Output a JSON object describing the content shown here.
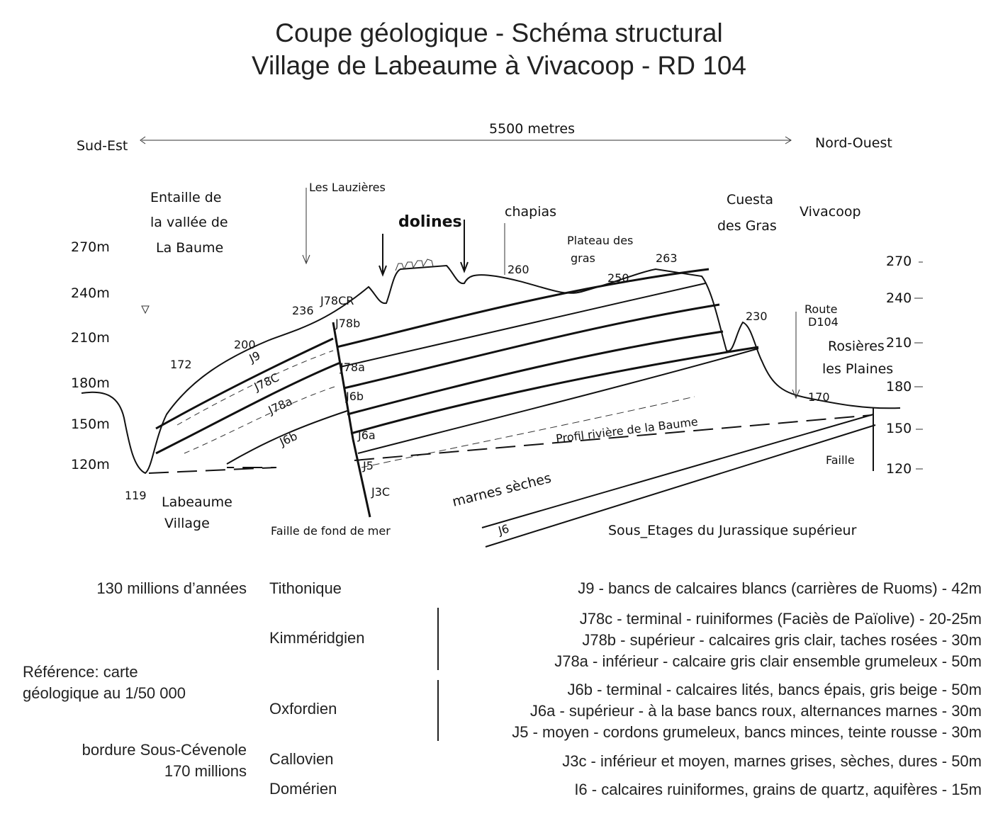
{
  "title": {
    "line1": "Coupe géologique - Schéma structural",
    "line2": "Village de Labeaume à Vivacoop - RD 104"
  },
  "section": {
    "distance": "5500 metres",
    "left_direction": "Sud-Est",
    "right_direction": "Nord-Ouest",
    "left_scale": [
      "270m",
      "240m",
      "210m",
      "180m",
      "150m",
      "120m"
    ],
    "right_scale": [
      "270",
      "240",
      "210",
      "180",
      "150",
      "120"
    ],
    "places": {
      "entaille": [
        "Entaille de",
        "la vallée de",
        "La Baume"
      ],
      "lauzieres": "Les Lauzières",
      "dolines": "dolines",
      "chapias": "chapias",
      "plateau": [
        "Plateau des",
        "gras"
      ],
      "cuesta": [
        "Cuesta",
        "des Gras"
      ],
      "vivacoop": "Vivacoop",
      "route": [
        "Route",
        "D104"
      ],
      "rosieres": [
        "Rosières",
        "les Plaines"
      ],
      "labeaume": [
        "Labeaume",
        "Village"
      ],
      "faille_fond": "Faille de fond de mer",
      "marnes": "marnes sèches",
      "profil": "Profil rivière de la Baume",
      "faille": "Faille",
      "sous_etages": "Sous_Etages du Jurassique supérieur"
    },
    "altitudes": [
      "119",
      "172",
      "200",
      "236",
      "260",
      "250",
      "263",
      "230",
      "170"
    ],
    "layers_left": [
      "J9",
      "J78C",
      "J78a",
      "J6b",
      "J78CR"
    ],
    "layers_right": [
      "J78b",
      "J78a",
      "J6b",
      "J6a",
      "J5",
      "J3C",
      "J6"
    ]
  },
  "legend": {
    "notes": [
      "130 millions d’années",
      "Référence: carte",
      "géologique au 1/50 000",
      "bordure Sous-Cévenole",
      "170 millions"
    ],
    "stages": [
      "Tithonique",
      "Kimméridgien",
      "Oxfordien",
      "Callovien",
      "Domérien"
    ],
    "descriptions": [
      "J9 - bancs de calcaires blancs (carrières de Ruoms) - 42m",
      "J78c - terminal - ruiniformes (Faciès de Païolive) - 20-25m",
      "J78b - supérieur - calcaires gris clair, taches rosées - 30m",
      "J78a - inférieur - calcaire gris clair ensemble grumeleux - 50m",
      "J6b - terminal - calcaires lités, bancs épais, gris beige - 50m",
      "J6a - supérieur - à la base bancs roux, alternances marnes - 30m",
      "J5 - moyen - cordons grumeleux, bancs minces, teinte rousse - 30m",
      "J3c - inférieur et moyen, marnes grises, sèches, dures - 50m",
      "I6 - calcaires ruiniformes, grains de quartz, aquifères - 15m"
    ]
  }
}
